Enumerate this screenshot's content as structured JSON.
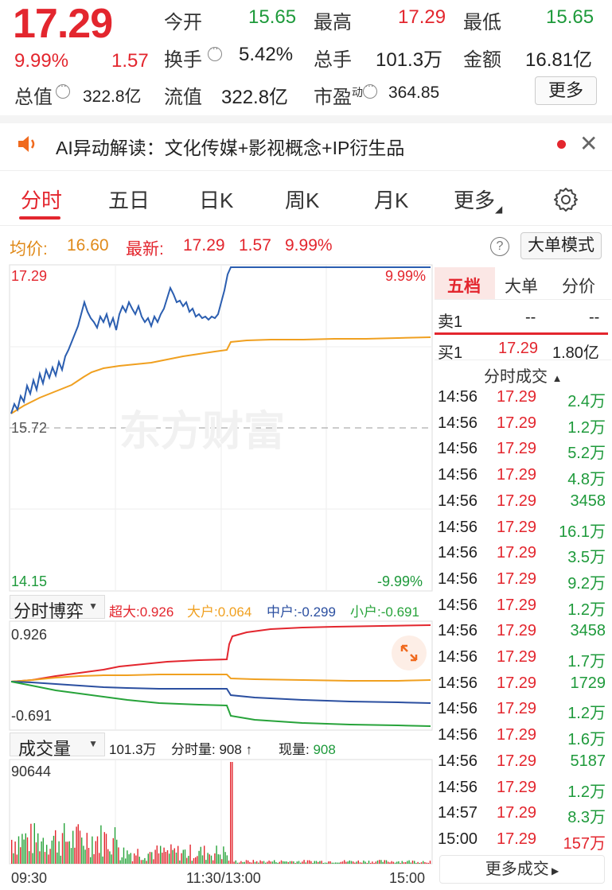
{
  "quote": {
    "price": "17.29",
    "change_pct": "9.99%",
    "change": "1.57",
    "open_label": "今开",
    "open": "15.65",
    "high_label": "最高",
    "high": "17.29",
    "low_label": "最低",
    "low": "15.65",
    "turnover_label": "换手",
    "turnover": "5.42%",
    "volume_label": "总手",
    "volume": "101.3万",
    "amount_label": "金额",
    "amount": "16.81亿",
    "mktcap_label": "总值",
    "mktcap": "322.8亿",
    "float_label": "流值",
    "float": "322.8亿",
    "pe_label": "市盈",
    "pe_sup": "动",
    "pe": "364.85",
    "more_label": "更多"
  },
  "banner": {
    "text": "AI异动解读：文化传媒+影视概念+IP衍生品",
    "icon": "speaker-icon"
  },
  "tabs": [
    {
      "label": "分时"
    },
    {
      "label": "五日"
    },
    {
      "label": "日K"
    },
    {
      "label": "周K"
    },
    {
      "label": "月K"
    },
    {
      "label": "更多"
    }
  ],
  "priceline": {
    "avg_label": "均价:",
    "avg": "16.60",
    "latest_label": "最新:",
    "latest": "17.29",
    "latest_change": "1.57",
    "latest_pct": "9.99%",
    "help": "?",
    "mode_btn": "大单模式"
  },
  "main_chart": {
    "y_top": "17.29",
    "y_mid": "15.72",
    "y_bottom": "14.15",
    "pct_top": "9.99%",
    "pct_bottom": "-9.99%",
    "watermark": "东方财富"
  },
  "game_panel": {
    "selector": "分时博弈",
    "super_label": "超大:",
    "super": "0.926",
    "big_label": "大户:",
    "big": "0.064",
    "mid_label": "中户:",
    "mid": "-0.299",
    "small_label": "小户:",
    "small": "-0.691",
    "y_top": "0.926",
    "y_bottom": "-0.691",
    "colors": {
      "super": "#e3262e",
      "big": "#f0a020",
      "mid": "#2b4fa0",
      "small": "#27a33a"
    }
  },
  "volume_panel": {
    "selector": "成交量",
    "total": "101.3万",
    "minute_label": "分时量:",
    "minute": "908",
    "current_label": "现量:",
    "current": "908",
    "y_top": "90644",
    "x_start": "09:30",
    "x_mid": "11:30/13:00",
    "x_end": "15:00"
  },
  "orderbook": {
    "tabs": [
      {
        "label": "五档"
      },
      {
        "label": "大单"
      },
      {
        "label": "分价"
      }
    ],
    "sell1_label": "卖1",
    "sell1_price": "--",
    "sell1_vol": "--",
    "buy1_label": "买1",
    "buy1_price": "17.29",
    "buy1_vol": "1.80亿",
    "trades_header": "分时成交",
    "trades": [
      {
        "time": "14:56",
        "price": "17.29",
        "vol": "2.4万",
        "color": "green"
      },
      {
        "time": "14:56",
        "price": "17.29",
        "vol": "1.2万",
        "color": "green"
      },
      {
        "time": "14:56",
        "price": "17.29",
        "vol": "5.2万",
        "color": "green"
      },
      {
        "time": "14:56",
        "price": "17.29",
        "vol": "4.8万",
        "color": "green"
      },
      {
        "time": "14:56",
        "price": "17.29",
        "vol": "3458",
        "color": "green"
      },
      {
        "time": "14:56",
        "price": "17.29",
        "vol": "16.1万",
        "color": "green"
      },
      {
        "time": "14:56",
        "price": "17.29",
        "vol": "3.5万",
        "color": "green"
      },
      {
        "time": "14:56",
        "price": "17.29",
        "vol": "9.2万",
        "color": "green"
      },
      {
        "time": "14:56",
        "price": "17.29",
        "vol": "1.2万",
        "color": "green"
      },
      {
        "time": "14:56",
        "price": "17.29",
        "vol": "3458",
        "color": "green"
      },
      {
        "time": "14:56",
        "price": "17.29",
        "vol": "1.7万",
        "color": "green"
      },
      {
        "time": "14:56",
        "price": "17.29",
        "vol": "1729",
        "color": "green"
      },
      {
        "time": "14:56",
        "price": "17.29",
        "vol": "1.2万",
        "color": "green"
      },
      {
        "time": "14:56",
        "price": "17.29",
        "vol": "1.6万",
        "color": "green"
      },
      {
        "time": "14:56",
        "price": "17.29",
        "vol": "5187",
        "color": "green"
      },
      {
        "time": "14:56",
        "price": "17.29",
        "vol": "1.2万",
        "color": "green"
      },
      {
        "time": "14:57",
        "price": "17.29",
        "vol": "8.3万",
        "color": "green"
      },
      {
        "time": "15:00",
        "price": "17.29",
        "vol": "157万",
        "color": "red"
      }
    ],
    "more_trades": "更多成交"
  }
}
